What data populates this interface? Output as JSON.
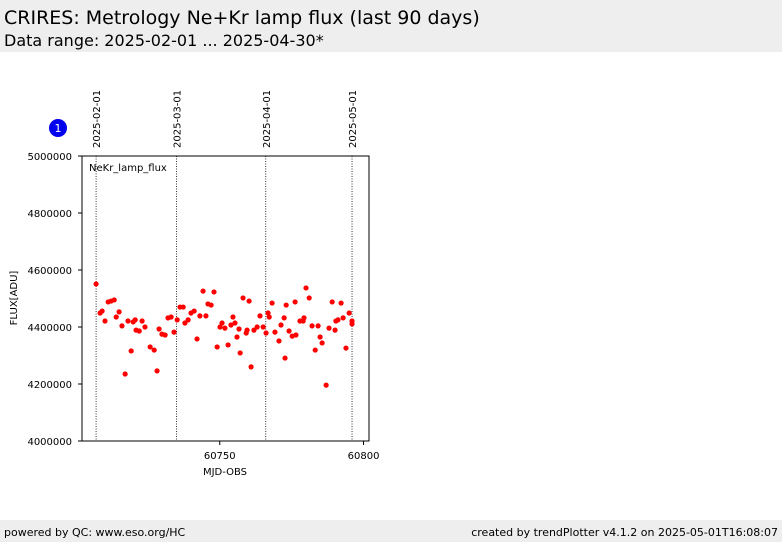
{
  "header": {
    "title": "CRIRES: Metrology Ne+Kr lamp flux (last 90 days)",
    "subtitle": "Data range: 2025-02-01 ... 2025-04-30*"
  },
  "badge": "1",
  "chart_data": {
    "type": "scatter",
    "xlabel": "MJD-OBS",
    "ylabel": "FLUX[ADU]",
    "xlim": [
      60702.1,
      60801.9
    ],
    "ylim": [
      4000000,
      5000000
    ],
    "xticks": [
      60750,
      60800
    ],
    "yticks": [
      4000000,
      4200000,
      4400000,
      4600000,
      4800000,
      5000000
    ],
    "date_lines": [
      {
        "value": 60707,
        "label": "2025-02-01"
      },
      {
        "value": 60735,
        "label": "2025-03-01"
      },
      {
        "value": 60766,
        "label": "2025-04-01"
      },
      {
        "value": 60796,
        "label": "2025-05-01"
      }
    ],
    "series": [
      {
        "name": "NeKr_lamp_flux",
        "color": "#ff0000",
        "x": [
          60707.0,
          60708.4,
          60709.1,
          60710.1,
          60711.2,
          60712.2,
          60713.3,
          60714.0,
          60715.0,
          60716.0,
          60717.1,
          60718.1,
          60719.2,
          60719.9,
          60720.6,
          60720.9,
          60722.0,
          60723.0,
          60724.0,
          60725.8,
          60727.2,
          60728.2,
          60728.9,
          60729.9,
          60731.0,
          60732.0,
          60733.1,
          60734.1,
          60735.2,
          60736.2,
          60737.3,
          60737.9,
          60739.0,
          60740.0,
          60741.1,
          60742.1,
          60743.1,
          60744.2,
          60745.2,
          60745.9,
          60747.0,
          60748.0,
          60749.1,
          60750.1,
          60750.8,
          60751.8,
          60752.9,
          60753.9,
          60754.6,
          60755.3,
          60756.0,
          60756.7,
          60757.1,
          60758.1,
          60759.2,
          60759.5,
          60760.2,
          60760.9,
          60761.9,
          60763.0,
          60764.0,
          60765.1,
          60766.1,
          60766.8,
          60767.2,
          60768.2,
          60769.2,
          60770.6,
          60771.3,
          60772.4,
          60772.7,
          60773.1,
          60774.1,
          60775.2,
          60776.2,
          60776.5,
          60777.9,
          60779.0,
          60779.3,
          60780.0,
          60781.1,
          60782.1,
          60783.2,
          60784.2,
          60784.9,
          60785.6,
          60787.0,
          60788.0,
          60789.1,
          60790.1,
          60790.4,
          60791.1,
          60792.2,
          60792.9,
          60793.9,
          60795.0,
          60796.0,
          60796.0
        ],
        "values": [
          4551000,
          4449000,
          4456000,
          4421000,
          4488000,
          4491000,
          4495000,
          4435000,
          4453000,
          4404000,
          4235000,
          4421000,
          4316000,
          4418000,
          4425000,
          4389000,
          4386000,
          4421000,
          4400000,
          4330000,
          4319000,
          4246000,
          4393000,
          4375000,
          4372000,
          4432000,
          4435000,
          4382000,
          4425000,
          4470000,
          4470000,
          4414000,
          4425000,
          4449000,
          4456000,
          4358000,
          4439000,
          4526000,
          4439000,
          4481000,
          4477000,
          4523000,
          4330000,
          4400000,
          4414000,
          4396000,
          4337000,
          4407000,
          4435000,
          4414000,
          4365000,
          4393000,
          4309000,
          4502000,
          4379000,
          4389000,
          4491000,
          4260000,
          4389000,
          4400000,
          4439000,
          4400000,
          4379000,
          4449000,
          4435000,
          4484000,
          4382000,
          4351000,
          4407000,
          4432000,
          4291000,
          4477000,
          4386000,
          4368000,
          4488000,
          4372000,
          4421000,
          4421000,
          4432000,
          4537000,
          4502000,
          4404000,
          4319000,
          4404000,
          4365000,
          4344000,
          4196000,
          4396000,
          4488000,
          4389000,
          4421000,
          4425000,
          4484000,
          4432000,
          4326000,
          4449000,
          4421000,
          4411000
        ]
      }
    ]
  },
  "footer": {
    "left": "powered by QC: www.eso.org/HC",
    "right": "created by trendPlotter v4.1.2 on 2025-05-01T16:08:07"
  }
}
